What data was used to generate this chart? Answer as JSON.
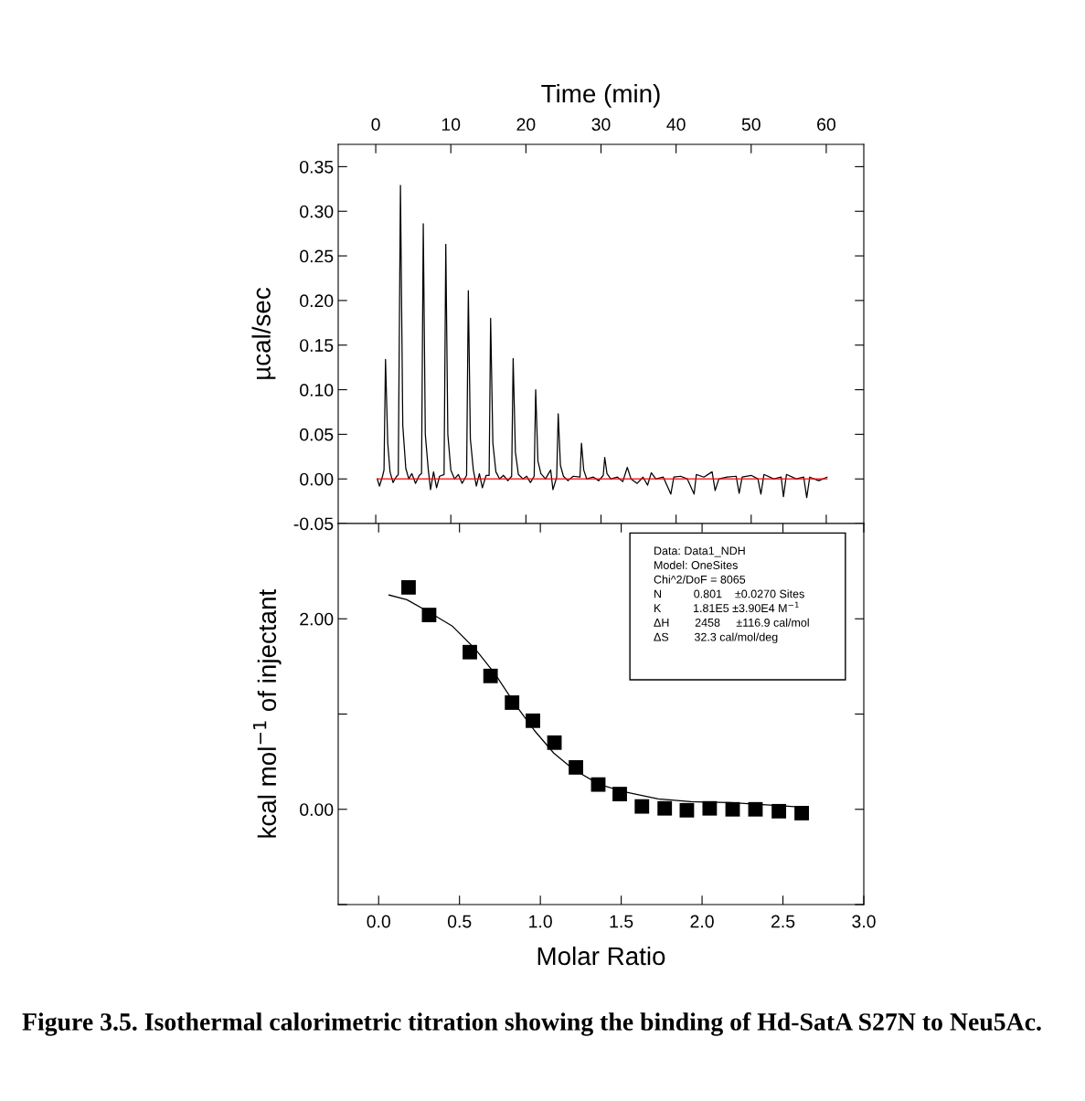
{
  "chart_data": [
    {
      "type": "line",
      "xlabel": "Time (min)",
      "ylabel": "µcal/sec",
      "xlim": [
        -5,
        65
      ],
      "xticks": [
        0,
        10,
        20,
        30,
        40,
        50,
        60
      ],
      "ylim": [
        -0.05,
        0.375
      ],
      "yticks": [
        {
          "value": -0.05,
          "label": "-0.05"
        },
        {
          "value": 0,
          "label": "0.00"
        },
        {
          "value": 0.05,
          "label": "0.05"
        },
        {
          "value": 0.1,
          "label": "0.10"
        },
        {
          "value": 0.15,
          "label": "0.15"
        },
        {
          "value": 0.2,
          "label": "0.20"
        },
        {
          "value": 0.25,
          "label": "0.25"
        },
        {
          "value": 0.3,
          "label": "0.30"
        },
        {
          "value": 0.35,
          "label": "0.35"
        }
      ],
      "grid": false,
      "legend": false,
      "line_style": "solid",
      "series": [
        {
          "color": "#000000",
          "x": [
            0.2,
            0.5,
            0.9,
            1.1,
            1.3,
            1.6,
            1.9,
            2.3,
            2.7,
            3.0,
            3.29,
            3.6,
            4.0,
            4.4,
            4.8,
            5.3,
            5.8,
            6.1,
            6.33,
            6.6,
            7.0,
            7.3,
            7.7,
            8.1,
            8.5,
            9.1,
            9.33,
            9.6,
            10.0,
            10.5,
            11.0,
            11.5,
            12.1,
            12.33,
            12.6,
            13.0,
            13.4,
            13.8,
            14.2,
            14.7,
            15.1,
            15.3,
            15.6,
            16.0,
            16.5,
            17.0,
            17.6,
            18.1,
            18.3,
            18.6,
            19.0,
            19.6,
            20.1,
            20.6,
            21.1,
            21.3,
            21.6,
            22.0,
            22.6,
            23.3,
            23.6,
            24.1,
            24.3,
            24.6,
            25.0,
            25.6,
            26.3,
            27.2,
            27.4,
            27.7,
            28.1,
            29.0,
            29.7,
            30.3,
            30.5,
            30.8,
            31.3,
            32.2,
            32.9,
            33.5,
            34.0,
            34.8,
            35.6,
            36.2,
            36.7,
            37.3,
            38.3,
            39.3,
            39.7,
            40.6,
            41.5,
            42.4,
            42.7,
            43.7,
            44.8,
            45.2,
            45.7,
            46.8,
            48.0,
            48.4,
            48.8,
            50.0,
            50.9,
            51.3,
            51.7,
            53.0,
            54.0,
            54.3,
            54.7,
            56.0,
            57.0,
            57.4,
            57.8,
            59.0,
            60.1
          ],
          "values": [
            0.0,
            -0.008,
            0.003,
            0.01,
            0.134,
            0.04,
            0.008,
            -0.004,
            0.002,
            0.005,
            0.329,
            0.06,
            0.012,
            0.0,
            0.006,
            -0.005,
            0.004,
            0.006,
            0.286,
            0.05,
            0.01,
            -0.012,
            0.008,
            -0.01,
            0.003,
            0.005,
            0.263,
            0.05,
            0.01,
            0.0,
            0.005,
            -0.005,
            0.004,
            0.211,
            0.045,
            0.01,
            -0.008,
            0.006,
            -0.01,
            0.004,
            0.004,
            0.18,
            0.04,
            0.008,
            0.0,
            0.004,
            -0.002,
            0.003,
            0.135,
            0.03,
            0.005,
            0.0,
            0.003,
            -0.004,
            0.003,
            0.1,
            0.02,
            0.006,
            0.0,
            0.01,
            -0.012,
            0.002,
            0.073,
            0.015,
            0.003,
            -0.002,
            0.003,
            0.002,
            0.04,
            0.01,
            0.0,
            0.002,
            -0.002,
            0.004,
            0.024,
            0.006,
            0.0,
            0.002,
            -0.003,
            0.013,
            0.0,
            -0.005,
            0.002,
            -0.007,
            0.007,
            0.0,
            0.002,
            -0.017,
            0.002,
            0.003,
            0.0,
            -0.017,
            0.005,
            0.002,
            0.008,
            -0.013,
            0.0,
            0.002,
            0.003,
            -0.016,
            0.002,
            0.004,
            0.0,
            -0.017,
            0.005,
            0.0,
            0.002,
            -0.02,
            0.005,
            0.0,
            0.002,
            -0.021,
            0.002,
            -0.002,
            0.002
          ]
        },
        {
          "color": "#ff0000",
          "x": [
            0.2,
            60.1
          ],
          "values": [
            0,
            0
          ]
        }
      ]
    },
    {
      "type": "scatter",
      "xlabel": "Molar Ratio",
      "ylabel": "kcal mol$^{−1}$ of injectant",
      "xlim": [
        -0.25,
        3.0
      ],
      "xticks": [
        {
          "value": 0,
          "label": "0.0"
        },
        {
          "value": 0.5,
          "label": "0.5"
        },
        {
          "value": 1,
          "label": "1.0"
        },
        {
          "value": 1.5,
          "label": "1.5"
        },
        {
          "value": 2,
          "label": "2.0"
        },
        {
          "value": 2.5,
          "label": "2.5"
        },
        {
          "value": 3,
          "label": "3.0"
        }
      ],
      "ylim": [
        -1.0,
        3.0
      ],
      "yticks": [
        {
          "value": -1,
          "label": null
        },
        {
          "value": 0,
          "label": "0.00"
        },
        {
          "value": 1,
          "label": null
        },
        {
          "value": 2,
          "label": "2.00"
        }
      ],
      "grid": false,
      "legend": false,
      "series": [
        {
          "marker": "square",
          "color": "#000000",
          "x": [
            0.185,
            0.312,
            0.564,
            0.692,
            0.825,
            0.954,
            1.087,
            1.22,
            1.358,
            1.491,
            1.628,
            1.769,
            1.906,
            2.047,
            2.189,
            2.33,
            2.475,
            2.616
          ],
          "values": [
            2.33,
            2.04,
            1.65,
            1.4,
            1.12,
            0.93,
            0.7,
            0.44,
            0.26,
            0.16,
            0.03,
            0.01,
            -0.01,
            0.01,
            0.0,
            0.0,
            -0.02,
            -0.04
          ]
        },
        {
          "type": "line",
          "color": "#000000",
          "x": [
            0.064,
            0.175,
            0.312,
            0.458,
            0.599,
            0.72,
            0.841,
            0.962,
            1.083,
            1.204,
            1.366,
            1.527,
            1.729,
            1.931,
            2.173,
            2.375,
            2.637
          ],
          "values": [
            2.25,
            2.2,
            2.07,
            1.92,
            1.68,
            1.42,
            1.11,
            0.83,
            0.59,
            0.42,
            0.26,
            0.18,
            0.11,
            0.08,
            0.07,
            0.05,
            0.02
          ]
        }
      ],
      "annotations": [
        "Data: Data1_NDH\nModel: OneSites\nChi^2/DoF = 8065\nN          0.801    ±0.0270 Sites\nK          1.81E5 ±3.90E4 M$^{−1}$\nΔH        2458     ±116.9 cal/mol\nΔS        32.3 cal/mol/deg",
        "Figure 3.5. Isothermal calorimetric titration showing the binding of Hd-SatA S27N to Neu5Ac."
      ]
    }
  ]
}
